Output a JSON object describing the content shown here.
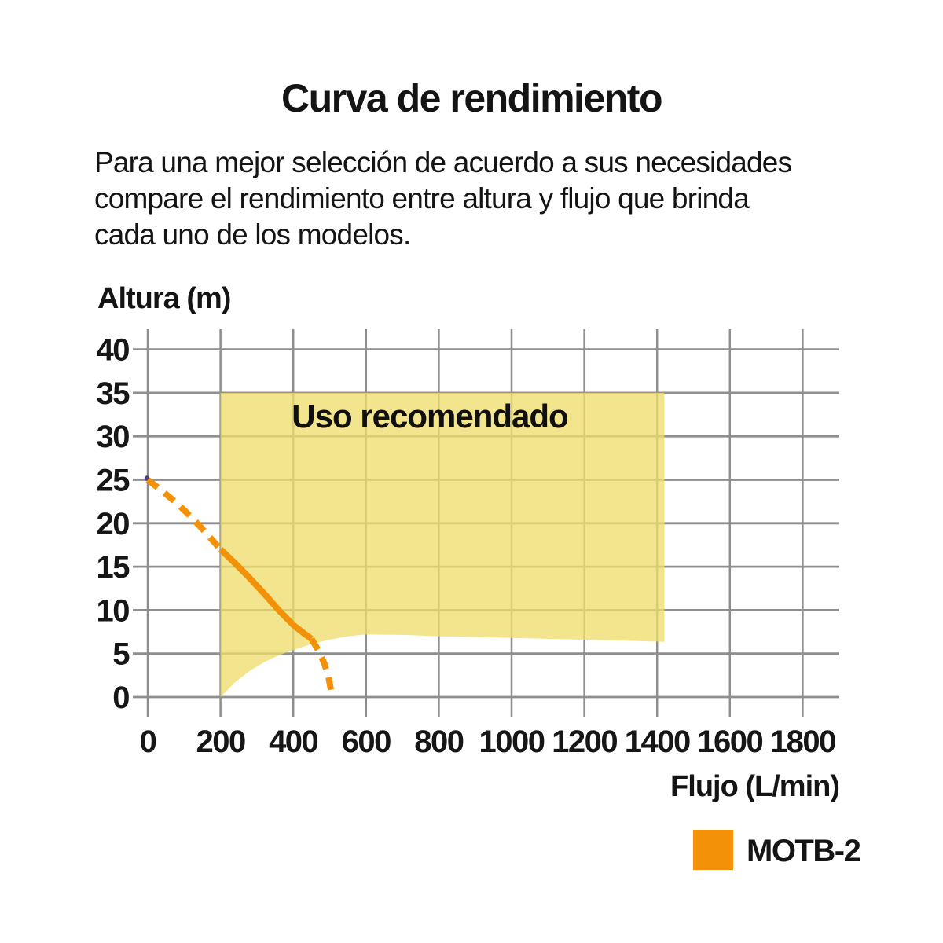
{
  "page": {
    "title": "Curva de rendimiento",
    "description_lines": [
      "Para una mejor selección de acuerdo a sus necesidades",
      "compare el rendimiento entre altura y flujo que brinda",
      "cada uno de los modelos."
    ]
  },
  "chart_data": {
    "type": "line",
    "title": "Curva de rendimiento",
    "xlabel": "Flujo (L/min)",
    "ylabel": "Altura (m)",
    "x_ticks": [
      0,
      200,
      400,
      600,
      800,
      1000,
      1200,
      1400,
      1600,
      1800
    ],
    "y_ticks": [
      0,
      5,
      10,
      15,
      20,
      25,
      30,
      35,
      40
    ],
    "xlim": [
      0,
      1800
    ],
    "ylim": [
      0,
      40
    ],
    "grid": true,
    "grid_color": "#8e8e8e",
    "text_color": "#161616",
    "recommended_region": {
      "label": "Uso recomendado",
      "fill_color": "rgba(238,222,110,0.78)",
      "x_range": [
        200,
        1420
      ],
      "y_top": 35,
      "bottom_boundary": [
        [
          200,
          0
        ],
        [
          240,
          1.7
        ],
        [
          280,
          3.0
        ],
        [
          320,
          4.0
        ],
        [
          360,
          4.8
        ],
        [
          400,
          5.4
        ],
        [
          450,
          6.1
        ],
        [
          500,
          6.6
        ],
        [
          550,
          7.0
        ],
        [
          600,
          7.2
        ],
        [
          700,
          7.15
        ],
        [
          800,
          7.0
        ],
        [
          900,
          6.9
        ],
        [
          1000,
          6.8
        ],
        [
          1100,
          6.7
        ],
        [
          1200,
          6.6
        ],
        [
          1300,
          6.5
        ],
        [
          1420,
          6.35
        ]
      ]
    },
    "series": [
      {
        "name": "MOTB-2",
        "color": "#f39208",
        "start_dot_color": "#4a3d8f",
        "segments": [
          {
            "style": "dashed",
            "points": [
              [
                0,
                25
              ],
              [
                40,
                23.7
              ],
              [
                80,
                22.3
              ],
              [
                120,
                20.7
              ],
              [
                160,
                18.9
              ],
              [
                200,
                17
              ]
            ]
          },
          {
            "style": "solid",
            "points": [
              [
                200,
                17
              ],
              [
                240,
                15.4
              ],
              [
                280,
                13.7
              ],
              [
                320,
                11.9
              ],
              [
                360,
                10.0
              ],
              [
                400,
                8.3
              ],
              [
                430,
                7.3
              ],
              [
                450,
                6.7
              ]
            ]
          },
          {
            "style": "dashed",
            "points": [
              [
                450,
                6.7
              ],
              [
                470,
                5.3
              ],
              [
                485,
                3.9
              ],
              [
                497,
                2.3
              ],
              [
                506,
                0.2
              ]
            ]
          }
        ]
      }
    ],
    "legend": [
      {
        "label": "MOTB-2",
        "color": "#f39208"
      }
    ],
    "legend_position": "bottom-right"
  }
}
